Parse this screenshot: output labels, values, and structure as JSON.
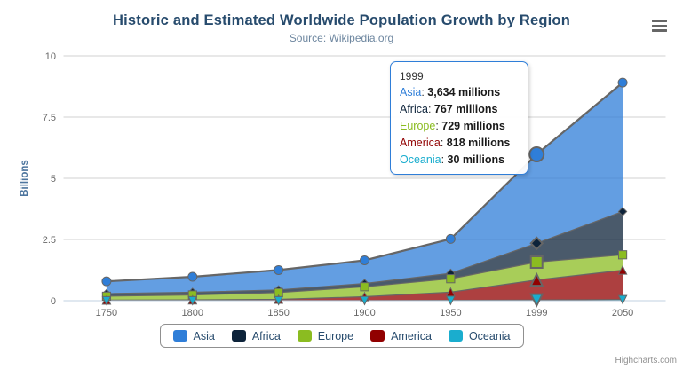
{
  "title": "Historic and Estimated Worldwide Population Growth by Region",
  "subtitle": "Source: Wikipedia.org",
  "credits": "Highcharts.com",
  "colors": {
    "title_text": "#274b6d",
    "subtitle_text": "#6d869f",
    "axis_label": "#666666",
    "axis_line": "#c0d0e0",
    "grid_line": "#d2d2d2",
    "marker_stroke": "#666666",
    "legend_border": "#909090",
    "tooltip_border": "#2f7ed8",
    "credits_text": "#909090"
  },
  "y_axis": {
    "title": "Billions",
    "title_color": "#4d759e",
    "ticks": [
      0,
      2.5,
      5,
      7.5,
      10
    ]
  },
  "x_axis": {
    "categories": [
      "1750",
      "1800",
      "1850",
      "1900",
      "1950",
      "1999",
      "2050"
    ]
  },
  "chart_data": {
    "type": "area",
    "stacking": "normal",
    "title": "Historic and Estimated Worldwide Population Growth by Region",
    "subtitle": "Source: Wikipedia.org",
    "xlabel": "",
    "ylabel": "Billions",
    "ylim": [
      0,
      10
    ],
    "grid": "horizontal-only",
    "legend_position": "bottom-center",
    "unit": "millions",
    "categories": [
      "1750",
      "1800",
      "1850",
      "1900",
      "1950",
      "1999",
      "2050"
    ],
    "fill_opacity": 0.75,
    "hovered_category_index": 5,
    "series": [
      {
        "name": "Asia",
        "color": "#2f7ed8",
        "marker": "circle",
        "values": [
          502,
          635,
          809,
          947,
          1402,
          3634,
          5268
        ]
      },
      {
        "name": "Africa",
        "color": "#0d233a",
        "marker": "diamond",
        "values": [
          106,
          107,
          111,
          133,
          221,
          767,
          1766
        ]
      },
      {
        "name": "Europe",
        "color": "#8bbc21",
        "marker": "square",
        "values": [
          163,
          203,
          276,
          408,
          547,
          729,
          628
        ]
      },
      {
        "name": "America",
        "color": "#910000",
        "marker": "triangle",
        "values": [
          18,
          31,
          54,
          156,
          339,
          818,
          1201
        ]
      },
      {
        "name": "Oceania",
        "color": "#1aadce",
        "marker": "triangle-down",
        "values": [
          2,
          2,
          2,
          6,
          13,
          30,
          46
        ]
      }
    ]
  },
  "tooltip": {
    "header": "1999",
    "rows": [
      {
        "name": "Asia",
        "color": "#2f7ed8",
        "value": "3,634 millions"
      },
      {
        "name": "Africa",
        "color": "#0d233a",
        "value": "767 millions"
      },
      {
        "name": "Europe",
        "color": "#8bbc21",
        "value": "729 millions"
      },
      {
        "name": "America",
        "color": "#910000",
        "value": "818 millions"
      },
      {
        "name": "Oceania",
        "color": "#1aadce",
        "value": "30 millions"
      }
    ]
  },
  "legend": {
    "items": [
      {
        "label": "Asia",
        "color": "#2f7ed8"
      },
      {
        "label": "Africa",
        "color": "#0d233a"
      },
      {
        "label": "Europe",
        "color": "#8bbc21"
      },
      {
        "label": "America",
        "color": "#910000"
      },
      {
        "label": "Oceania",
        "color": "#1aadce"
      }
    ]
  }
}
